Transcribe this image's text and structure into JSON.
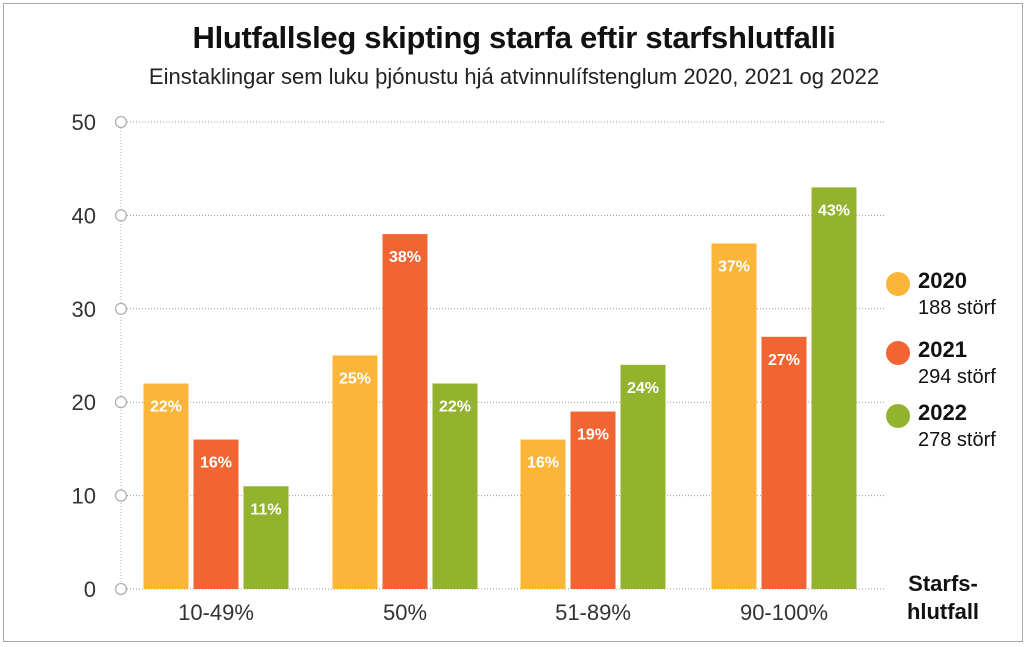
{
  "chart_data": {
    "type": "bar",
    "title": "Hlutfallsleg skipting starfa eftir starfshlutfalli",
    "subtitle": "Einstaklingar sem luku þjónustu hjá atvinnulífstenglum 2020, 2021 og 2022",
    "xlabel": "Starfs-hlutfall",
    "xlabel_lines": [
      "Starfs-",
      "hlutfall"
    ],
    "ylabel": "",
    "ylim": [
      0,
      50
    ],
    "yticks": [
      0,
      10,
      20,
      30,
      40,
      50
    ],
    "grid": true,
    "legend_placement": "right",
    "categories": [
      "10-49%",
      "50%",
      "51-89%",
      "90-100%"
    ],
    "series": [
      {
        "name": "2020",
        "count_label": "188 störf",
        "color": "#fbb63a",
        "values": [
          22,
          25,
          16,
          37
        ],
        "labels": [
          "22%",
          "25%",
          "16%",
          "37%"
        ]
      },
      {
        "name": "2021",
        "count_label": "294 störf",
        "color": "#f26533",
        "values": [
          16,
          38,
          19,
          27
        ],
        "labels": [
          "16%",
          "38%",
          "19%",
          "27%"
        ]
      },
      {
        "name": "2022",
        "count_label": "278 störf",
        "color": "#93b22e",
        "values": [
          11,
          22,
          24,
          43
        ],
        "labels": [
          "11%",
          "22%",
          "24%",
          "43%"
        ]
      }
    ]
  }
}
